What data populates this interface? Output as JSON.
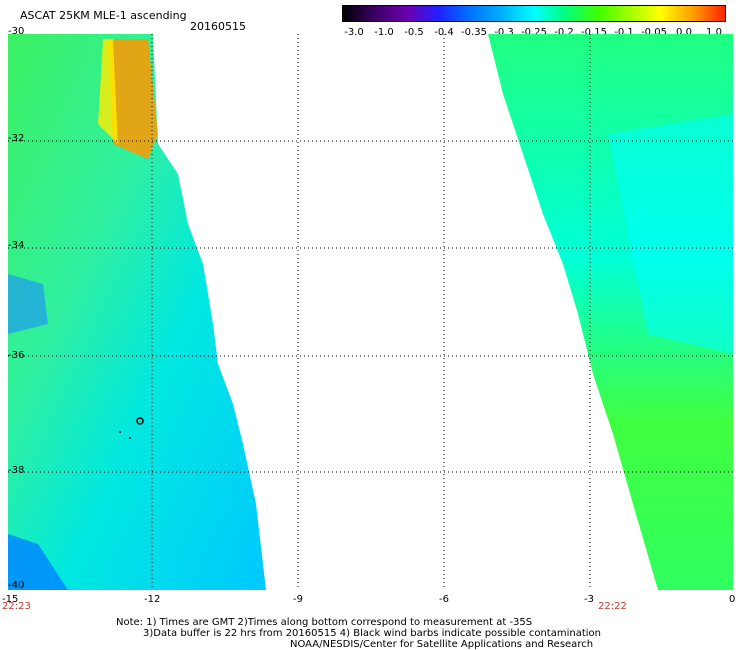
{
  "title": "ASCAT 25KM MLE-1 ascending",
  "date": "20160515",
  "colorbar": {
    "labels": [
      "-3.0",
      "-1.0",
      "-0.5",
      "-0.4",
      "-0.35",
      "-0.3",
      "-0.25",
      "-0.2",
      "-0.15",
      "-0.1",
      "-0.05",
      "0.0",
      "1.0"
    ],
    "colors": [
      "#000000",
      "#3a0060",
      "#6a00b0",
      "#2020ff",
      "#0070ff",
      "#00b4ff",
      "#00ffff",
      "#00ff80",
      "#40ff00",
      "#a0ff00",
      "#ffff00",
      "#ff9900",
      "#ff2000"
    ]
  },
  "map": {
    "lat_labels": [
      "-30",
      "-32",
      "-34",
      "-36",
      "-38",
      "-40"
    ],
    "lon_labels": [
      "-15",
      "-12",
      "-9",
      "-6",
      "-3",
      "0"
    ],
    "lat_range": [
      -40,
      -30
    ],
    "lon_range": [
      -15,
      0
    ],
    "times": [
      "22:23",
      "22:22"
    ]
  },
  "notes": [
    "Note: 1) Times are GMT 2)Times along bottom correspond to measurement at -35S",
    "3)Data buffer is 22 hrs from 20160515 4) Black wind barbs indicate possible contamination",
    "NOAA/NESDIS/Center for Satellite Applications and Research"
  ]
}
